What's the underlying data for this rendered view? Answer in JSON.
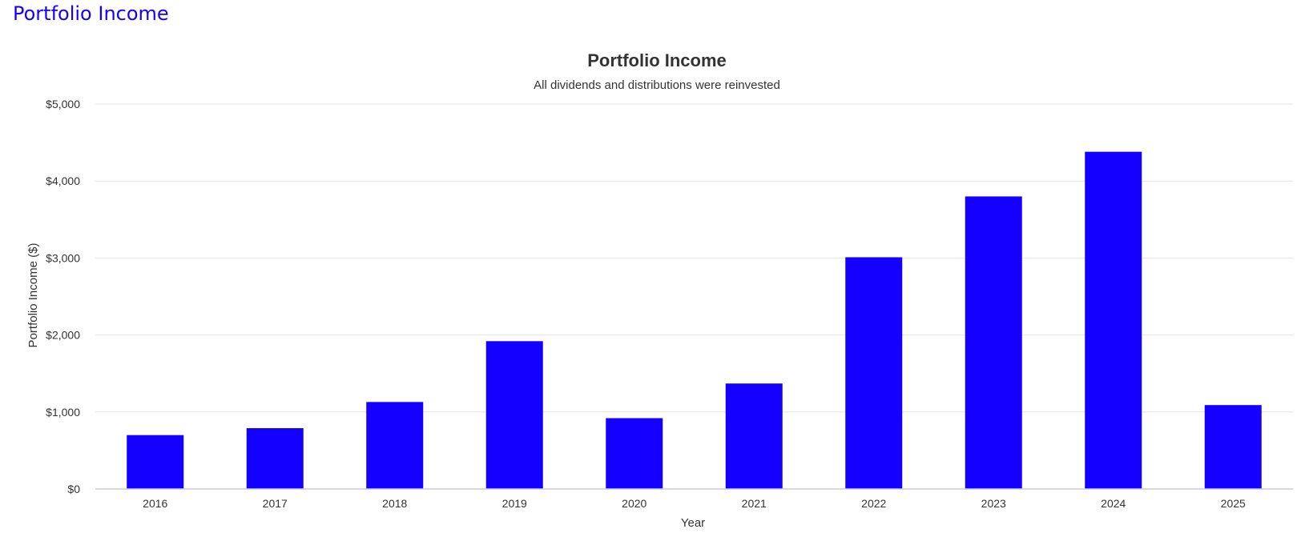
{
  "page": {
    "heading": "Portfolio Income"
  },
  "chart_data": {
    "type": "bar",
    "title": "Portfolio Income",
    "subtitle": "All dividends and distributions were reinvested",
    "xlabel": "Year",
    "ylabel": "Portfolio Income ($)",
    "ylim": [
      0,
      5000
    ],
    "y_ticks": [
      {
        "value": 0,
        "label": "$0"
      },
      {
        "value": 1000,
        "label": "$1,000"
      },
      {
        "value": 2000,
        "label": "$2,000"
      },
      {
        "value": 3000,
        "label": "$3,000"
      },
      {
        "value": 4000,
        "label": "$4,000"
      },
      {
        "value": 5000,
        "label": "$5,000"
      }
    ],
    "categories": [
      "2016",
      "2017",
      "2018",
      "2019",
      "2020",
      "2021",
      "2022",
      "2023",
      "2024",
      "2025"
    ],
    "values": [
      700,
      790,
      1130,
      1920,
      920,
      1370,
      3010,
      3800,
      4380,
      1090
    ],
    "bar_color": "#1400ff",
    "grid": true,
    "legend": "none"
  }
}
